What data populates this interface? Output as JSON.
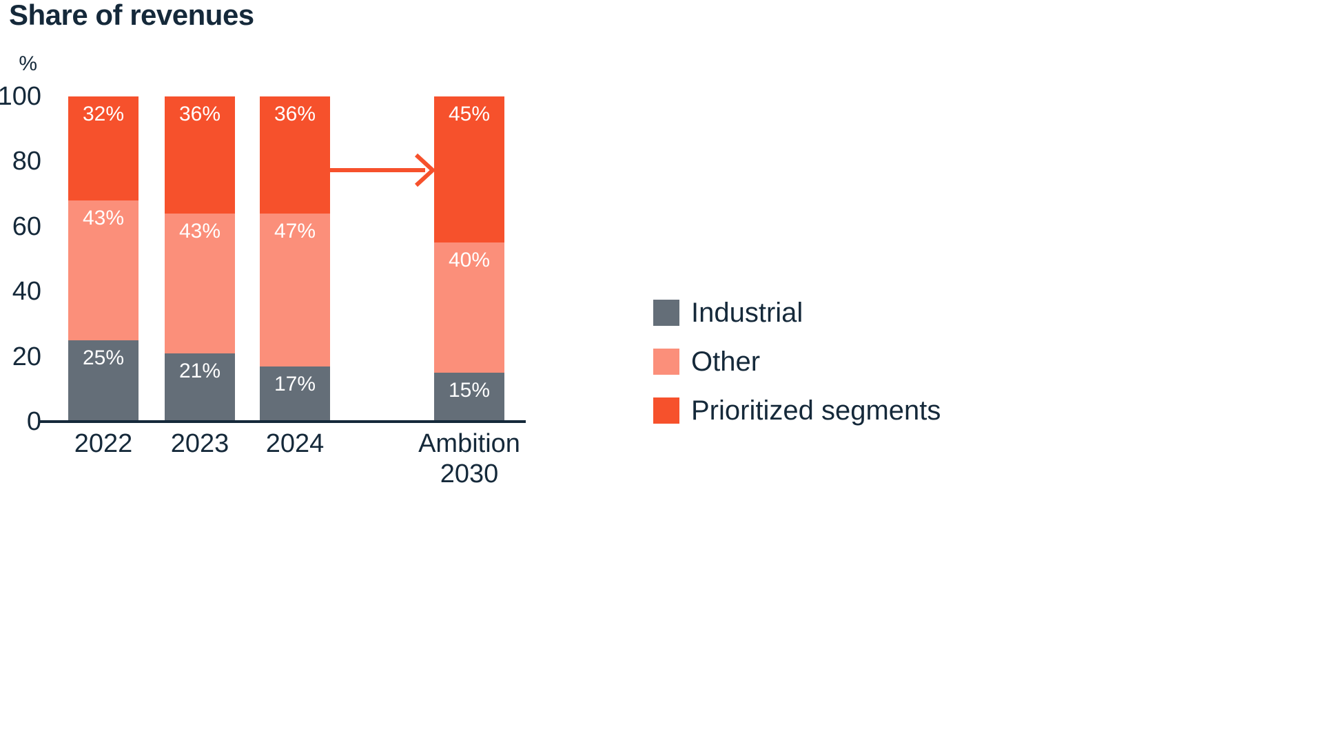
{
  "title": "Share of revenues",
  "chart_data": {
    "type": "bar",
    "stacked": true,
    "title": "Share of revenues",
    "y_unit_label": "%",
    "categories": [
      "2022",
      "2023",
      "2024",
      "Ambition\n2030"
    ],
    "series": [
      {
        "name": "Industrial",
        "color": "#646E78",
        "values": [
          25,
          21,
          17,
          15
        ]
      },
      {
        "name": "Other",
        "color": "#FB8F7A",
        "values": [
          43,
          43,
          47,
          40
        ]
      },
      {
        "name": "Prioritized segments",
        "color": "#F6512C",
        "values": [
          32,
          36,
          36,
          45
        ]
      }
    ],
    "value_suffix": "%",
    "value_label_color": "#FFFFFF",
    "y_ticks": [
      0,
      20,
      40,
      60,
      80,
      100
    ],
    "ylim": [
      0,
      100
    ],
    "grid": false,
    "legend_position": "right",
    "legend": [
      "Industrial",
      "Other",
      "Prioritized segments"
    ],
    "annotations": [
      {
        "type": "arrow",
        "from_category": "2024",
        "to_category": "Ambition 2030",
        "at_value": 77.5,
        "color": "#F6512C"
      }
    ],
    "axis_color": "#15293A",
    "text_color": "#15293A"
  }
}
